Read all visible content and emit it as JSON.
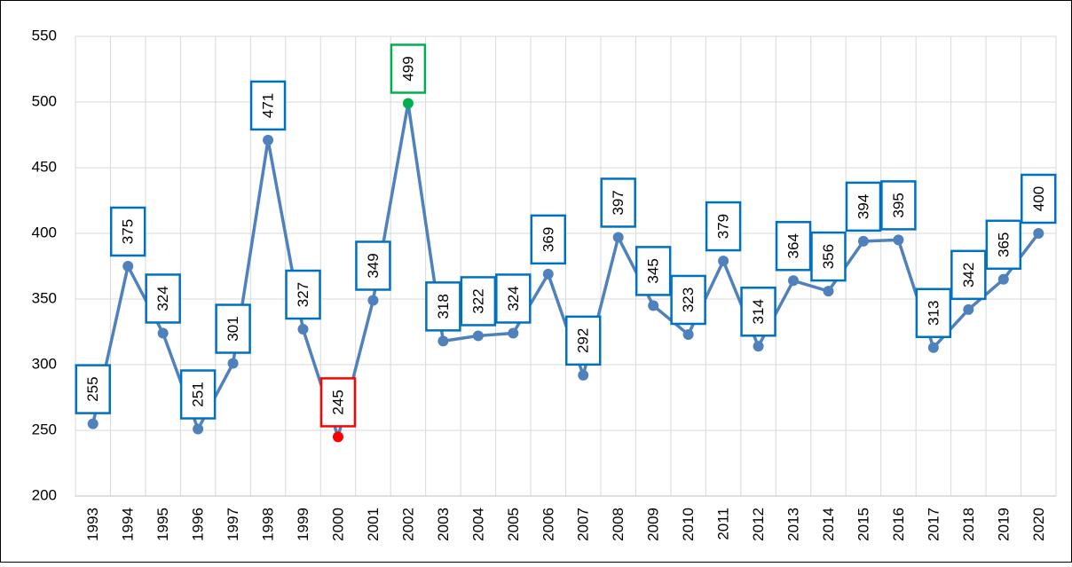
{
  "chart_data": {
    "type": "line",
    "categories": [
      "1993",
      "1994",
      "1995",
      "1996",
      "1997",
      "1998",
      "1999",
      "2000",
      "2001",
      "2002",
      "2003",
      "2004",
      "2005",
      "2006",
      "2007",
      "2008",
      "2009",
      "2010",
      "2011",
      "2012",
      "2013",
      "2014",
      "2015",
      "2016",
      "2017",
      "2018",
      "2019",
      "2020"
    ],
    "values": [
      255,
      375,
      324,
      251,
      301,
      471,
      327,
      245,
      349,
      499,
      318,
      322,
      324,
      369,
      292,
      397,
      345,
      323,
      379,
      314,
      364,
      356,
      394,
      395,
      313,
      342,
      365,
      400
    ],
    "color": "#4f81bd",
    "label_box_color": "#0070c0",
    "min_color": "#ff0000",
    "max_color": "#00b050",
    "ylim": [
      200,
      550
    ],
    "yticks": [
      200,
      250,
      300,
      350,
      400,
      450,
      500,
      550
    ],
    "grid": true
  }
}
